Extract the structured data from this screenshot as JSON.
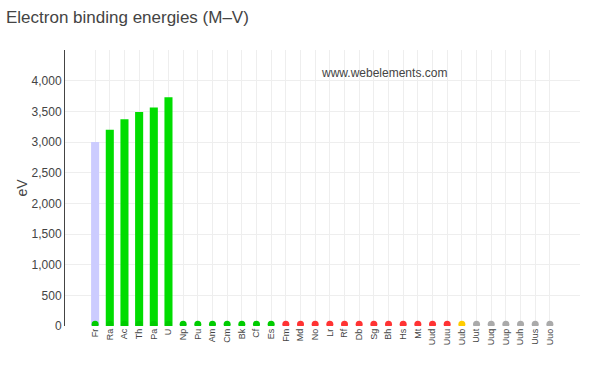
{
  "chart_data": {
    "type": "bar",
    "title": "Electron binding energies (M–V)",
    "ylabel": "eV",
    "categories": [
      "Fr",
      "Ra",
      "Ac",
      "Th",
      "Pa",
      "U",
      "Np",
      "Pu",
      "Am",
      "Cm",
      "Bk",
      "Cf",
      "Es",
      "Fm",
      "Md",
      "No",
      "Lr",
      "Rf",
      "Db",
      "Sg",
      "Bh",
      "Hs",
      "Mt",
      "Uud",
      "Uuu",
      "Uub",
      "Uut",
      "Uuq",
      "Uup",
      "Uuh",
      "Uus",
      "Uuo"
    ],
    "series": [
      {
        "type": "bar",
        "values": [
          3000,
          3200,
          3370,
          3491,
          3562,
          3728,
          0,
          0,
          0,
          0,
          0,
          0,
          0,
          0,
          0,
          0,
          0,
          0,
          0,
          0,
          0,
          0,
          0,
          0,
          0,
          0,
          0,
          0,
          0,
          0,
          0,
          0
        ],
        "colors": [
          "#ccccff",
          "#00dd00",
          "#00dd00",
          "#00dd00",
          "#00dd00",
          "#00dd00",
          "#000000",
          "#000000",
          "#000000",
          "#000000",
          "#000000",
          "#000000",
          "#000000",
          "#000000",
          "#000000",
          "#000000",
          "#000000",
          "#000000",
          "#000000",
          "#000000",
          "#000000",
          "#000000",
          "#000000",
          "#000000",
          "#000000",
          "#000000",
          "#000000",
          "#000000",
          "#000000",
          "#000000",
          "#000000",
          "#000000"
        ]
      },
      {
        "type": "scatter",
        "values": [
          30,
          30,
          30,
          30,
          30,
          30,
          30,
          30,
          30,
          30,
          30,
          30,
          30,
          30,
          30,
          30,
          30,
          30,
          30,
          30,
          30,
          30,
          30,
          30,
          30,
          30,
          30,
          30,
          30,
          30,
          30,
          30
        ],
        "colors": [
          "#00cc00",
          "#00cc00",
          "#00cc00",
          "#00cc00",
          "#00cc00",
          "#00cc00",
          "#00cc00",
          "#00cc00",
          "#00cc00",
          "#00cc00",
          "#00cc00",
          "#00cc00",
          "#00cc00",
          "#ff3333",
          "#ff3333",
          "#ff3333",
          "#ff3333",
          "#ff3333",
          "#ff3333",
          "#ff3333",
          "#ff3333",
          "#ff3333",
          "#ff3333",
          "#ff3333",
          "#ff3333",
          "#ffcc00",
          "#aaaaaa",
          "#aaaaaa",
          "#aaaaaa",
          "#aaaaaa",
          "#aaaaaa",
          "#aaaaaa"
        ]
      }
    ],
    "annotations": [
      "www.webelements.com"
    ],
    "ylim": [
      0,
      4500
    ],
    "yticks": [
      0,
      500,
      {
        "value": 1000,
        "label": "1,000"
      },
      {
        "value": 1500,
        "label": "1,500"
      },
      {
        "value": 2000,
        "label": "2,000"
      },
      {
        "value": 2500,
        "label": "2,500"
      },
      {
        "value": 3000,
        "label": "3,000"
      },
      {
        "value": 3500,
        "label": "3,500"
      },
      {
        "value": 4000,
        "label": "4,000"
      }
    ],
    "grid": true
  }
}
